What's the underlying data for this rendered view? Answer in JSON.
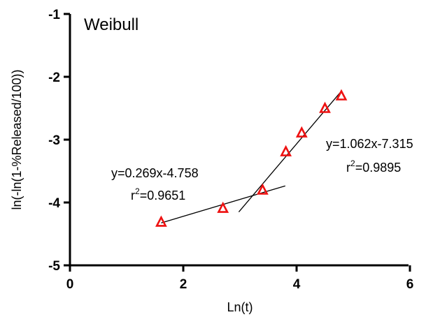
{
  "chart_data": {
    "type": "scatter",
    "title": "Weibull",
    "xlabel": "Ln(t)",
    "ylabel": "ln(-ln(1-%Released/100))",
    "xlim": [
      0,
      6
    ],
    "ylim": [
      -5,
      -1
    ],
    "x_ticks": [
      "0",
      "2",
      "4",
      "6"
    ],
    "y_ticks": [
      "-5",
      "-4",
      "-3",
      "-2",
      "-1"
    ],
    "grid": false,
    "marker": "open-triangle",
    "marker_color": "#ee1111",
    "series": [
      {
        "points": [
          {
            "x": 1.61,
            "y": -4.31
          },
          {
            "x": 2.7,
            "y": -4.09
          },
          {
            "x": 3.4,
            "y": -3.8
          },
          {
            "x": 3.81,
            "y": -3.19
          },
          {
            "x": 4.09,
            "y": -2.89
          },
          {
            "x": 4.5,
            "y": -2.5
          },
          {
            "x": 4.79,
            "y": -2.3
          }
        ]
      }
    ],
    "fit_lines": [
      {
        "slope": 0.269,
        "intercept": -4.758,
        "x_range": [
          1.61,
          3.8
        ],
        "equation": "y=0.269x-4.758",
        "r2_prefix": "r",
        "r2_sup": "2",
        "r2_value": "=0.9651"
      },
      {
        "slope": 1.062,
        "intercept": -7.315,
        "x_range": [
          2.98,
          4.79
        ],
        "equation": "y=1.062x-7.315",
        "r2_prefix": "r",
        "r2_sup": "2",
        "r2_value": "=0.9895"
      }
    ]
  }
}
